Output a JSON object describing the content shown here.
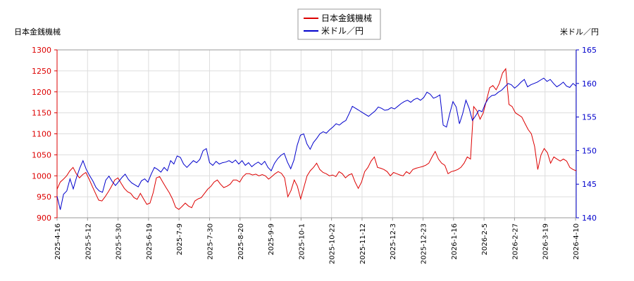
{
  "chart_data": {
    "type": "line",
    "left_axis_label": "日本金銭機械",
    "right_axis_label": "米ドル／円",
    "legend": [
      {
        "name": "日本金銭機械",
        "color": "#dd0000"
      },
      {
        "name": "米ドル／円",
        "color": "#0000cc"
      }
    ],
    "legend_position": "top-center",
    "grid": true,
    "y_left": {
      "min": 900,
      "max": 1300,
      "ticks": [
        900,
        950,
        1000,
        1050,
        1100,
        1150,
        1200,
        1250,
        1300
      ],
      "color": "#dd0000"
    },
    "y_right": {
      "min": 140,
      "max": 165,
      "ticks": [
        140,
        145,
        150,
        155,
        160,
        165
      ],
      "color": "#0000cc"
    },
    "x_tick_labels": [
      "2025-4-16",
      "2025-5-12",
      "2025-5-30",
      "2025-6-19",
      "2025-7-9",
      "2025-7-30",
      "2025-8-20",
      "2025-9-9",
      "2025-10-1",
      "2025-10-22",
      "2025-11-12",
      "2025-12-3",
      "2025-12-23",
      "2026-1-16",
      "2026-2-5",
      "2026-2-27",
      "2026-3-19",
      "2026-4-10"
    ],
    "series": [
      {
        "name": "日本金銭機械",
        "axis": "left",
        "color": "#dd0000",
        "values": [
          968,
          985,
          992,
          1000,
          1012,
          1020,
          1005,
          995,
          1003,
          1008,
          992,
          975,
          958,
          942,
          940,
          950,
          962,
          975,
          990,
          995,
          982,
          970,
          962,
          958,
          948,
          944,
          958,
          945,
          932,
          935,
          960,
          995,
          998,
          985,
          972,
          960,
          945,
          925,
          920,
          927,
          935,
          928,
          924,
          940,
          945,
          948,
          958,
          968,
          975,
          985,
          990,
          980,
          972,
          975,
          980,
          990,
          990,
          985,
          998,
          1005,
          1005,
          1002,
          1004,
          1000,
          1003,
          1000,
          992,
          998,
          1005,
          1010,
          1006,
          995,
          950,
          965,
          990,
          975,
          945,
          972,
          1000,
          1012,
          1020,
          1030,
          1015,
          1008,
          1005,
          1000,
          1002,
          998,
          1010,
          1005,
          995,
          1002,
          1005,
          985,
          970,
          985,
          1010,
          1020,
          1035,
          1045,
          1020,
          1018,
          1015,
          1010,
          1000,
          1008,
          1005,
          1002,
          1000,
          1010,
          1005,
          1015,
          1018,
          1020,
          1022,
          1025,
          1030,
          1045,
          1058,
          1040,
          1030,
          1025,
          1005,
          1010,
          1012,
          1015,
          1020,
          1030,
          1045,
          1040,
          1165,
          1155,
          1135,
          1150,
          1180,
          1210,
          1215,
          1205,
          1220,
          1245,
          1255,
          1170,
          1165,
          1150,
          1145,
          1140,
          1125,
          1110,
          1100,
          1070,
          1015,
          1050,
          1065,
          1055,
          1030,
          1045,
          1040,
          1035,
          1040,
          1035,
          1020,
          1015,
          1012
        ]
      },
      {
        "name": "米ドル／円",
        "axis": "right",
        "color": "#0000cc",
        "values": [
          143.2,
          141.2,
          143.5,
          144.0,
          145.8,
          144.3,
          146.0,
          147.4,
          148.5,
          147.2,
          146.3,
          145.5,
          144.5,
          144.0,
          143.8,
          145.6,
          146.2,
          145.4,
          144.8,
          145.4,
          146.0,
          146.5,
          145.7,
          145.2,
          144.9,
          144.6,
          145.5,
          145.8,
          145.3,
          146.5,
          147.5,
          147.2,
          146.8,
          147.5,
          147.0,
          148.5,
          148.0,
          149.2,
          149.0,
          148.0,
          147.5,
          148.0,
          148.5,
          148.2,
          148.7,
          150.0,
          150.3,
          148.2,
          147.8,
          148.4,
          148.0,
          148.2,
          148.3,
          148.5,
          148.2,
          148.6,
          148.0,
          148.5,
          147.8,
          148.2,
          147.6,
          148.0,
          148.3,
          147.9,
          148.4,
          147.5,
          147.0,
          148.1,
          148.8,
          149.3,
          149.6,
          148.3,
          147.3,
          148.6,
          150.8,
          152.3,
          152.5,
          151.0,
          150.2,
          151.2,
          151.8,
          152.5,
          152.8,
          152.6,
          153.1,
          153.5,
          154.0,
          153.8,
          154.2,
          154.5,
          155.5,
          156.6,
          156.3,
          156.0,
          155.7,
          155.4,
          155.1,
          155.5,
          155.9,
          156.5,
          156.3,
          156.0,
          156.1,
          156.4,
          156.2,
          156.6,
          157.0,
          157.3,
          157.5,
          157.2,
          157.6,
          157.8,
          157.5,
          157.9,
          158.7,
          158.4,
          157.8,
          158.0,
          158.3,
          153.8,
          153.5,
          155.5,
          157.3,
          156.5,
          154.0,
          155.5,
          157.5,
          156.3,
          154.5,
          155.2,
          156.0,
          155.8,
          157.0,
          157.8,
          158.2,
          158.3,
          158.7,
          159.0,
          159.5,
          160.0,
          159.8,
          159.3,
          159.7,
          160.2,
          160.6,
          159.5,
          159.8,
          160.0,
          160.2,
          160.5,
          160.8,
          160.3,
          160.6,
          160.0,
          159.5,
          159.8,
          160.2,
          159.6,
          159.4,
          160.0,
          159.6
        ]
      }
    ]
  }
}
